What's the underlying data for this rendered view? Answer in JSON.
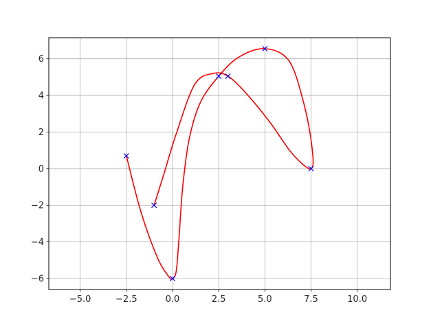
{
  "chart_data": {
    "type": "line",
    "title": "",
    "xlabel": "",
    "ylabel": "",
    "xlim": [
      -6.7,
      11.8
    ],
    "ylim": [
      -6.6,
      7.15
    ],
    "x_ticks": [
      -5.0,
      -2.5,
      0.0,
      2.5,
      5.0,
      7.5,
      10.0
    ],
    "x_tick_labels": [
      "−5.0",
      "−2.5",
      "0.0",
      "2.5",
      "5.0",
      "7.5",
      "10.0"
    ],
    "y_ticks": [
      -6,
      -4,
      -2,
      0,
      2,
      4,
      6
    ],
    "y_tick_labels": [
      "−6",
      "−4",
      "−2",
      "0",
      "2",
      "4",
      "6"
    ],
    "grid": true,
    "legend": "none",
    "series": [
      {
        "kind": "markers",
        "marker": "x",
        "color": "#0000ff",
        "points": [
          {
            "x": -2.5,
            "y": 0.7
          },
          {
            "x": 0.0,
            "y": -6.0
          },
          {
            "x": 2.5,
            "y": 5.05
          },
          {
            "x": 5.0,
            "y": 6.55
          },
          {
            "x": 7.5,
            "y": 0.0
          },
          {
            "x": 3.0,
            "y": 5.05
          },
          {
            "x": -1.0,
            "y": -2.0
          }
        ]
      },
      {
        "kind": "curve",
        "color": "#ff0000",
        "points": [
          {
            "x": -2.5,
            "y": 0.7
          },
          {
            "x": -1.7,
            "y": -2.4
          },
          {
            "x": -0.8,
            "y": -4.9
          },
          {
            "x": -0.2,
            "y": -5.9
          },
          {
            "x": 0.0,
            "y": -6.0
          },
          {
            "x": 0.2,
            "y": -5.6
          },
          {
            "x": 0.35,
            "y": -3.8
          },
          {
            "x": 0.55,
            "y": -1.0
          },
          {
            "x": 0.9,
            "y": 1.6
          },
          {
            "x": 1.5,
            "y": 3.6
          },
          {
            "x": 2.5,
            "y": 5.05
          },
          {
            "x": 3.6,
            "y": 6.1
          },
          {
            "x": 5.0,
            "y": 6.55
          },
          {
            "x": 6.3,
            "y": 5.9
          },
          {
            "x": 7.1,
            "y": 3.6
          },
          {
            "x": 7.55,
            "y": 1.2
          },
          {
            "x": 7.5,
            "y": 0.0
          },
          {
            "x": 6.5,
            "y": 0.8
          },
          {
            "x": 5.3,
            "y": 2.5
          },
          {
            "x": 4.0,
            "y": 4.1
          },
          {
            "x": 3.0,
            "y": 5.05
          },
          {
            "x": 2.2,
            "y": 5.2
          },
          {
            "x": 1.2,
            "y": 4.6
          },
          {
            "x": 0.2,
            "y": 1.9
          },
          {
            "x": -0.5,
            "y": -0.4
          },
          {
            "x": -1.0,
            "y": -2.0
          }
        ]
      }
    ]
  }
}
